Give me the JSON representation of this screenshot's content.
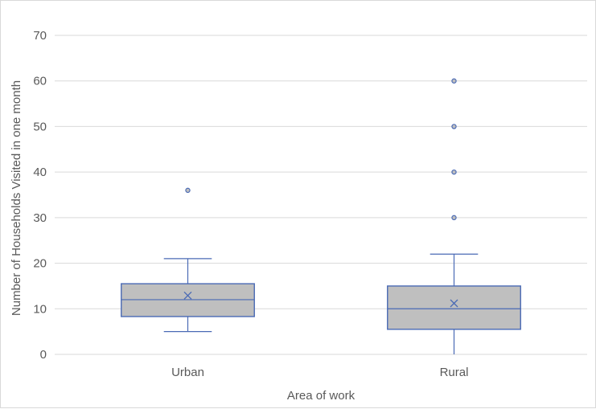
{
  "chart_data": {
    "type": "box",
    "xlabel": "Area of work",
    "ylabel": "Number of Households Visited in one month",
    "ylim": [
      0,
      70
    ],
    "yticks": [
      0,
      10,
      20,
      30,
      40,
      50,
      60,
      70
    ],
    "grid": true,
    "categories": [
      "Urban",
      "Rural"
    ],
    "boxes": [
      {
        "category": "Urban",
        "min": 5,
        "q1": 8.3,
        "median": 12,
        "q3": 15.5,
        "max": 21,
        "mean": 12.9,
        "outliers": [
          36
        ]
      },
      {
        "category": "Rural",
        "min": 0,
        "q1": 5.5,
        "median": 10,
        "q3": 15,
        "max": 22,
        "mean": 11.2,
        "outliers": [
          30,
          40,
          50,
          60
        ]
      }
    ],
    "colors": {
      "box_fill": "#bfbfbf",
      "box_stroke": "#4a6ab5",
      "grid": "#d9d9d9",
      "text": "#595959"
    }
  }
}
